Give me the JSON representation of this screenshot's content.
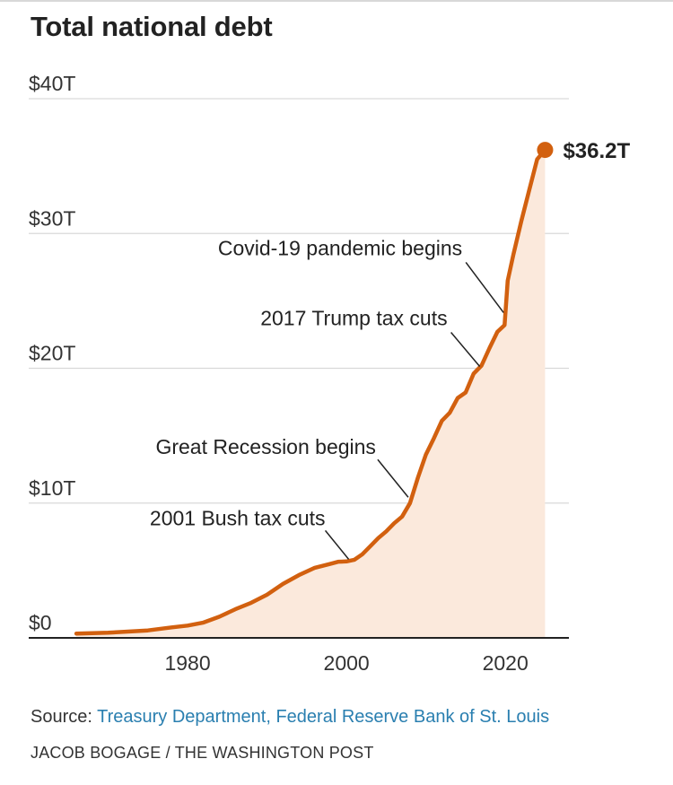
{
  "chart_data": {
    "type": "area",
    "title": "Total national debt",
    "xlabel": "",
    "ylabel": "",
    "unit": "trillions of dollars",
    "xlim": [
      1960,
      2028
    ],
    "ylim": [
      0,
      40
    ],
    "grid": true,
    "x_ticks": [
      {
        "value": 1980,
        "label": "1980"
      },
      {
        "value": 2000,
        "label": "2000"
      },
      {
        "value": 2020,
        "label": "2020"
      }
    ],
    "y_ticks": [
      {
        "value": 0,
        "label": "$0"
      },
      {
        "value": 10,
        "label": "$10T"
      },
      {
        "value": 20,
        "label": "$20T"
      },
      {
        "value": 30,
        "label": "$30T"
      },
      {
        "value": 40,
        "label": "$40T"
      }
    ],
    "series": [
      {
        "name": "Total national debt",
        "color": "#d2600f",
        "fill": "#fbe9dc",
        "x": [
          1966,
          1970,
          1975,
          1978,
          1980,
          1982,
          1984,
          1986,
          1988,
          1990,
          1992,
          1994,
          1996,
          1998,
          1999,
          2000,
          2001,
          2002,
          2003,
          2004,
          2005,
          2006,
          2007,
          2008,
          2009,
          2010,
          2011,
          2012,
          2013,
          2014,
          2015,
          2016,
          2017,
          2018,
          2019,
          2019.9,
          2020.3,
          2021,
          2022,
          2023,
          2024,
          2025
        ],
        "values": [
          0.32,
          0.38,
          0.55,
          0.78,
          0.91,
          1.14,
          1.57,
          2.12,
          2.6,
          3.2,
          4.0,
          4.65,
          5.2,
          5.5,
          5.65,
          5.67,
          5.8,
          6.2,
          6.8,
          7.4,
          7.9,
          8.5,
          9.0,
          10.0,
          11.9,
          13.6,
          14.8,
          16.1,
          16.7,
          17.8,
          18.2,
          19.6,
          20.2,
          21.5,
          22.7,
          23.2,
          26.5,
          28.4,
          30.9,
          33.2,
          35.5,
          36.2
        ]
      }
    ],
    "end_label": {
      "x": 2025,
      "value": 36.2,
      "text": "$36.2T"
    },
    "annotations": [
      {
        "text": "2001 Bush tax cuts",
        "x": 2000.5,
        "y": 5.7
      },
      {
        "text": "Great Recession begins",
        "x": 2008,
        "y": 10.3
      },
      {
        "text": "2017 Trump tax cuts",
        "x": 2017,
        "y": 20.0
      },
      {
        "text": "Covid-19 pandemic begins",
        "x": 2020,
        "y": 24.0
      }
    ]
  },
  "source": {
    "label": "Source:",
    "text": "Treasury Department, Federal Reserve Bank of St. Louis"
  },
  "credit": "JACOB BOGAGE / THE WASHINGTON POST",
  "colors": {
    "line": "#d2600f",
    "area": "#fbe9dc",
    "grid": "#d9d9d9",
    "axis": "#222222",
    "source_link": "#2a7fb0"
  }
}
